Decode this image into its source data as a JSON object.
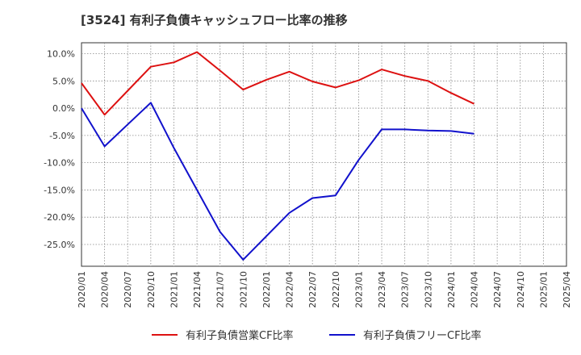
{
  "chart_data": {
    "type": "line",
    "title": "[3524]  有利子負債キャッシュフロー比率の推移",
    "xlabel": "",
    "ylabel": "",
    "x_ticks": [
      "2020/01",
      "2020/04",
      "2020/07",
      "2020/10",
      "2021/01",
      "2021/04",
      "2021/07",
      "2021/10",
      "2022/01",
      "2022/04",
      "2022/07",
      "2022/10",
      "2023/01",
      "2023/04",
      "2023/07",
      "2023/10",
      "2024/01",
      "2024/04",
      "2024/07",
      "2024/10",
      "2025/01",
      "2025/04"
    ],
    "y_ticks": [
      "10.0%",
      "5.0%",
      "0.0%",
      "-5.0%",
      "-10.0%",
      "-15.0%",
      "-20.0%",
      "-25.0%"
    ],
    "y_tick_values": [
      10,
      5,
      0,
      -5,
      -10,
      -15,
      -20,
      -25
    ],
    "ylim": [
      -29,
      12
    ],
    "grid": true,
    "legend_position": "bottom",
    "series": [
      {
        "name": "有利子負債営業CF比率",
        "color": "#dd1111",
        "values": [
          4.6,
          -1.2,
          3.2,
          7.6,
          8.4,
          10.3,
          6.9,
          3.4,
          5.2,
          6.7,
          4.9,
          3.8,
          5.1,
          7.1,
          5.9,
          5.0,
          2.8,
          0.8,
          null,
          null,
          null,
          null
        ]
      },
      {
        "name": "有利子負債フリーCF比率",
        "color": "#1111cc",
        "values": [
          0.0,
          -7.0,
          -3.0,
          1.0,
          -7.3,
          -15.0,
          -22.7,
          -27.8,
          -23.5,
          -19.2,
          -16.5,
          -16.0,
          -9.5,
          -3.9,
          -3.9,
          -4.1,
          -4.2,
          -4.7,
          null,
          null,
          null,
          null
        ]
      }
    ]
  }
}
